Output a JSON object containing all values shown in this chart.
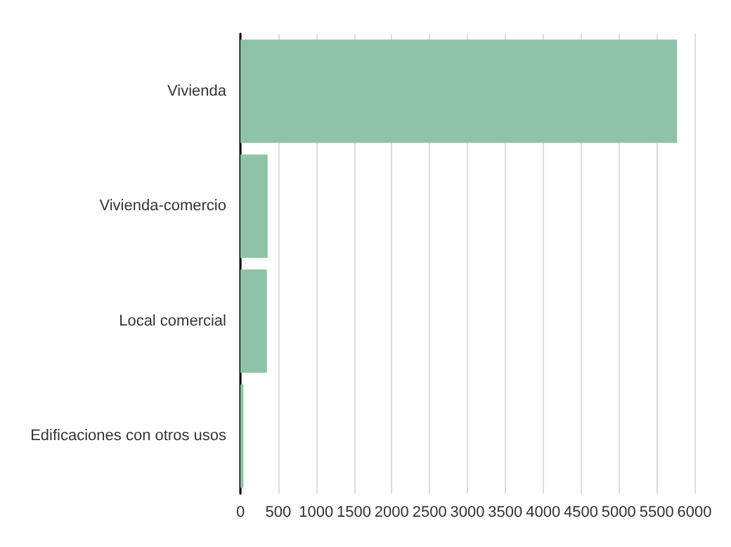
{
  "chart_data": {
    "type": "bar",
    "orientation": "horizontal",
    "categories": [
      "Vivienda",
      "Vivienda-comercio",
      "Local comercial",
      "Edificaciones con otros usos"
    ],
    "values": [
      5770,
      360,
      350,
      40
    ],
    "color": "#8fc3a7",
    "xlim": [
      0,
      6000
    ],
    "xticks": [
      0,
      500,
      1000,
      1500,
      2000,
      2500,
      3000,
      3500,
      4000,
      4500,
      5000,
      5500,
      6000
    ],
    "grid": "x"
  }
}
